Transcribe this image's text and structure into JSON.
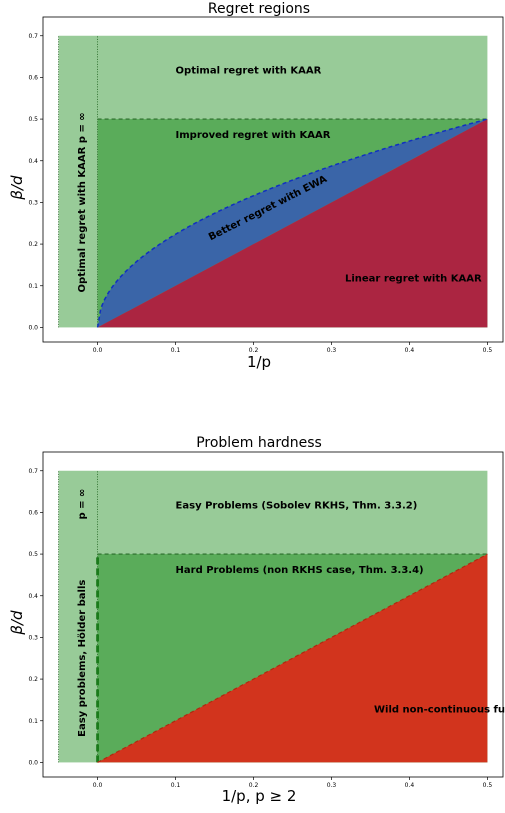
{
  "chart_data": [
    {
      "type": "area",
      "title": "Regret regions",
      "xlabel": "1/p",
      "ylabel": "β/d",
      "xlim": [
        -0.07,
        0.52
      ],
      "ylim": [
        -0.035,
        0.745
      ],
      "x_ticks": [
        0.0,
        0.1,
        0.2,
        0.3,
        0.4,
        0.5
      ],
      "y_ticks": [
        0.0,
        0.1,
        0.2,
        0.3,
        0.4,
        0.5,
        0.6,
        0.7
      ],
      "x_tick_labels": [
        "0.0",
        "0.1",
        "0.2",
        "0.3",
        "0.4",
        "0.5"
      ],
      "y_tick_labels": [
        "0.0",
        "0.1",
        "0.2",
        "0.3",
        "0.4",
        "0.5",
        "0.6",
        "0.7"
      ],
      "grid": false,
      "regions": [
        {
          "name": "Optimal regret with KAAR",
          "color": "#98cb98",
          "shape": "rect",
          "x": [
            -0.05,
            0.5
          ],
          "y": [
            0.0,
            0.7
          ]
        },
        {
          "name": "Improved regret with KAAR",
          "color": "#5aac5a",
          "shape": "rect",
          "x": [
            0.0,
            0.5
          ],
          "y": [
            0.0,
            0.5
          ]
        },
        {
          "name": "Better regret with EWA",
          "color": "#3a65a8",
          "shape": "between",
          "upper": "sqrt(x/2)",
          "lower": "x",
          "x": [
            0.0,
            0.5
          ]
        },
        {
          "name": "Linear regret with KAAR",
          "color": "#ab2541",
          "shape": "triangle",
          "points": [
            [
              0.0,
              0.0
            ],
            [
              0.5,
              0.5
            ],
            [
              0.5,
              0.0
            ]
          ]
        }
      ],
      "boundary_lines": [
        {
          "type": "dotted",
          "color": "#1a5c1a",
          "x": [
            -0.05,
            -0.05
          ],
          "y": [
            0.0,
            0.7
          ]
        },
        {
          "type": "dotted",
          "color": "#1a5c1a",
          "x": [
            0.0,
            0.0
          ],
          "y": [
            0.0,
            0.7
          ]
        },
        {
          "type": "dashed",
          "color": "#2a6b2a",
          "x": [
            0.0,
            0.5
          ],
          "y": [
            0.5,
            0.5
          ]
        },
        {
          "type": "dashed",
          "color": "#1030c0",
          "curve": "sqrt(x/2)",
          "x": [
            0.0,
            0.5
          ]
        }
      ],
      "annotations": [
        {
          "text": "Optimal regret with KAAR",
          "x": 0.1,
          "y": 0.61,
          "rotation": 0
        },
        {
          "text": "Improved regret with KAAR",
          "x": 0.1,
          "y": 0.455,
          "rotation": 0
        },
        {
          "text": "Better regret with EWA",
          "x": 0.22,
          "y": 0.28,
          "rotation": -27
        },
        {
          "text": "Linear regret with KAAR",
          "x": 0.405,
          "y": 0.11,
          "rotation": 0
        },
        {
          "text": "Optimal regret with KAAR  p = ∞",
          "x": -0.016,
          "y": 0.3,
          "rotation": -90
        }
      ]
    },
    {
      "type": "area",
      "title": "Problem hardness",
      "xlabel": "1/p, p ≥ 2",
      "ylabel": "β/d",
      "xlim": [
        -0.07,
        0.52
      ],
      "ylim": [
        -0.035,
        0.745
      ],
      "x_ticks": [
        0.0,
        0.1,
        0.2,
        0.3,
        0.4,
        0.5
      ],
      "y_ticks": [
        0.0,
        0.1,
        0.2,
        0.3,
        0.4,
        0.5,
        0.6,
        0.7
      ],
      "x_tick_labels": [
        "0.0",
        "0.1",
        "0.2",
        "0.3",
        "0.4",
        "0.5"
      ],
      "y_tick_labels": [
        "0.0",
        "0.1",
        "0.2",
        "0.3",
        "0.4",
        "0.5",
        "0.6",
        "0.7"
      ],
      "grid": false,
      "regions": [
        {
          "name": "Easy Problems (Sobolev RKHS, Thm. 3.3.2)",
          "color": "#98cb98",
          "shape": "rect",
          "x": [
            -0.05,
            0.5
          ],
          "y": [
            0.0,
            0.7
          ]
        },
        {
          "name": "Hard Problems (non RKHS case, Thm. 3.3.4)",
          "color": "#5aac5a",
          "shape": "rect",
          "x": [
            0.0,
            0.5
          ],
          "y": [
            0.0,
            0.5
          ]
        },
        {
          "name": "Wild non-continuous functions",
          "color": "#d2341d",
          "shape": "triangle",
          "points": [
            [
              0.0,
              0.0
            ],
            [
              0.5,
              0.5
            ],
            [
              0.5,
              0.0
            ]
          ]
        }
      ],
      "boundary_lines": [
        {
          "type": "dotted",
          "color": "#1a5c1a",
          "x": [
            -0.05,
            -0.05
          ],
          "y": [
            0.0,
            0.7
          ]
        },
        {
          "type": "dotted",
          "color": "#1a5c1a",
          "x": [
            0.0,
            0.0
          ],
          "y": [
            0.0,
            0.7
          ]
        },
        {
          "type": "dashed-thick",
          "color": "#1a7a1a",
          "x": [
            0.0,
            0.0
          ],
          "y": [
            0.0,
            0.5
          ]
        },
        {
          "type": "dashed",
          "color": "#2a6b2a",
          "x": [
            0.0,
            0.5
          ],
          "y": [
            0.5,
            0.5
          ]
        },
        {
          "type": "dashed",
          "color": "#b02a10",
          "x": [
            0.0,
            0.5
          ],
          "y": [
            0.0,
            0.5
          ]
        }
      ],
      "annotations": [
        {
          "text": "Easy Problems (Sobolev RKHS, Thm. 3.3.2)",
          "x": 0.1,
          "y": 0.61,
          "rotation": 0
        },
        {
          "text": "Hard Problems (non RKHS case, Thm. 3.3.4)",
          "x": 0.1,
          "y": 0.455,
          "rotation": 0
        },
        {
          "text": "Wild non-continuous functions",
          "x": 0.465,
          "y": 0.12,
          "rotation": 0
        },
        {
          "text": "Easy problems, Hölder balls",
          "x": -0.016,
          "y": 0.25,
          "rotation": -90
        },
        {
          "text": "p = ∞",
          "x": -0.016,
          "y": 0.62,
          "rotation": -90
        }
      ]
    }
  ]
}
